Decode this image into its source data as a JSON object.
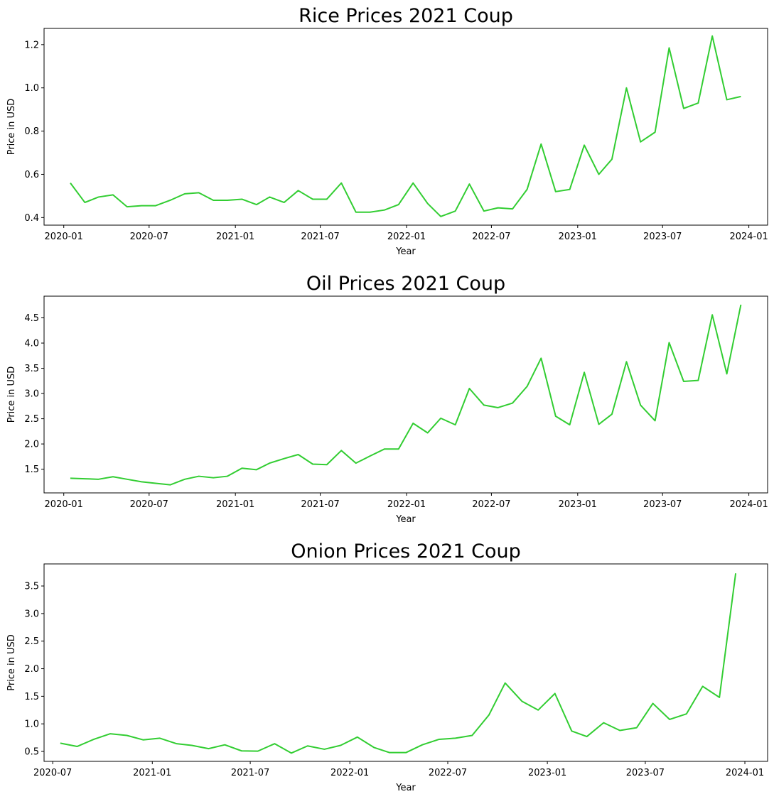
{
  "chart_data": [
    {
      "type": "line",
      "title": "Rice Prices 2021 Coup",
      "xlabel": "Year",
      "ylabel": "Price in USD",
      "color": "#32cd32",
      "xlim": [
        "2019-11-20",
        "2024-02-10"
      ],
      "ylim": [
        0.365,
        1.275
      ],
      "xticks": [
        "2020-01",
        "2020-07",
        "2021-01",
        "2021-07",
        "2022-01",
        "2022-07",
        "2023-01",
        "2023-07",
        "2024-01"
      ],
      "yticks": [
        "0.4",
        "0.6",
        "0.8",
        "1.0",
        "1.2"
      ],
      "series": [
        {
          "x": [
            "2020-01-15",
            "2020-02-15",
            "2020-03-15",
            "2020-04-15",
            "2020-05-15",
            "2020-06-15",
            "2020-07-15",
            "2020-08-15",
            "2020-09-15",
            "2020-10-15",
            "2020-11-15",
            "2020-12-15",
            "2021-01-15",
            "2021-02-15",
            "2021-03-15",
            "2021-04-15",
            "2021-05-15",
            "2021-06-15",
            "2021-07-15",
            "2021-08-15",
            "2021-09-15",
            "2021-10-15",
            "2021-11-15",
            "2021-12-15",
            "2022-01-15",
            "2022-02-15",
            "2022-03-15",
            "2022-04-15",
            "2022-05-15",
            "2022-06-15",
            "2022-07-15",
            "2022-08-15",
            "2022-09-15",
            "2022-10-15",
            "2022-11-15",
            "2022-12-15",
            "2023-01-15",
            "2023-02-15",
            "2023-03-15",
            "2023-04-15",
            "2023-05-15",
            "2023-06-15",
            "2023-07-15",
            "2023-08-15",
            "2023-09-15",
            "2023-10-15",
            "2023-11-15",
            "2023-12-15"
          ],
          "values": [
            0.56,
            0.47,
            0.495,
            0.505,
            0.45,
            0.455,
            0.455,
            0.48,
            0.51,
            0.515,
            0.48,
            0.48,
            0.485,
            0.46,
            0.495,
            0.47,
            0.525,
            0.485,
            0.485,
            0.56,
            0.425,
            0.425,
            0.435,
            0.46,
            0.56,
            0.465,
            0.405,
            0.43,
            0.555,
            0.43,
            0.445,
            0.44,
            0.53,
            0.74,
            0.52,
            0.53,
            0.735,
            0.6,
            0.67,
            1.0,
            0.75,
            0.795,
            1.185,
            0.905,
            0.93,
            1.24,
            0.945,
            0.96
          ]
        }
      ]
    },
    {
      "type": "line",
      "title": "Oil Prices 2021 Coup",
      "xlabel": "Year",
      "ylabel": "Price in USD",
      "color": "#32cd32",
      "xlim": [
        "2019-11-20",
        "2024-02-10"
      ],
      "ylim": [
        1.03,
        4.93
      ],
      "xticks": [
        "2020-01",
        "2020-07",
        "2021-01",
        "2021-07",
        "2022-01",
        "2022-07",
        "2023-01",
        "2023-07",
        "2024-01"
      ],
      "yticks": [
        "1.5",
        "2.0",
        "2.5",
        "3.0",
        "3.5",
        "4.0",
        "4.5"
      ],
      "series": [
        {
          "x": [
            "2020-01-15",
            "2020-02-15",
            "2020-03-15",
            "2020-04-15",
            "2020-05-15",
            "2020-06-15",
            "2020-07-15",
            "2020-08-15",
            "2020-09-15",
            "2020-10-15",
            "2020-11-15",
            "2020-12-15",
            "2021-01-15",
            "2021-02-15",
            "2021-03-15",
            "2021-04-15",
            "2021-05-15",
            "2021-06-15",
            "2021-07-15",
            "2021-08-15",
            "2021-09-15",
            "2021-10-15",
            "2021-11-15",
            "2021-12-15",
            "2022-01-15",
            "2022-02-15",
            "2022-03-15",
            "2022-04-15",
            "2022-05-15",
            "2022-06-15",
            "2022-07-15",
            "2022-08-15",
            "2022-09-15",
            "2022-10-15",
            "2022-11-15",
            "2022-12-15",
            "2023-01-15",
            "2023-02-15",
            "2023-03-15",
            "2023-04-15",
            "2023-05-15",
            "2023-06-15",
            "2023-07-15",
            "2023-08-15",
            "2023-09-15",
            "2023-10-15",
            "2023-11-15",
            "2023-12-15"
          ],
          "values": [
            1.32,
            1.31,
            1.3,
            1.35,
            1.3,
            1.25,
            1.22,
            1.19,
            1.3,
            1.36,
            1.33,
            1.36,
            1.52,
            1.49,
            1.62,
            1.71,
            1.79,
            1.6,
            1.59,
            1.87,
            1.62,
            1.76,
            1.9,
            1.9,
            2.41,
            2.22,
            2.51,
            2.38,
            3.1,
            2.77,
            2.72,
            2.81,
            3.14,
            3.7,
            2.55,
            2.38,
            3.42,
            2.39,
            2.59,
            3.63,
            2.77,
            2.46,
            4.01,
            3.24,
            3.26,
            4.56,
            3.39,
            4.76
          ]
        }
      ]
    },
    {
      "type": "line",
      "title": "Onion Prices 2021 Coup",
      "xlabel": "Year",
      "ylabel": "Price in USD",
      "color": "#32cd32",
      "xlim": [
        "2020-06-15",
        "2024-02-12"
      ],
      "ylim": [
        0.32,
        3.9
      ],
      "xticks": [
        "2020-07",
        "2021-01",
        "2021-07",
        "2022-01",
        "2022-07",
        "2023-01",
        "2023-07",
        "2024-01"
      ],
      "yticks": [
        "0.5",
        "1.0",
        "1.5",
        "2.0",
        "2.5",
        "3.0",
        "3.5"
      ],
      "series": [
        {
          "x": [
            "2020-07-15",
            "2020-08-15",
            "2020-09-15",
            "2020-10-15",
            "2020-11-15",
            "2020-12-15",
            "2021-01-15",
            "2021-02-15",
            "2021-03-15",
            "2021-04-15",
            "2021-05-15",
            "2021-06-15",
            "2021-07-15",
            "2021-08-15",
            "2021-09-15",
            "2021-10-15",
            "2021-11-15",
            "2021-12-15",
            "2022-01-15",
            "2022-02-15",
            "2022-03-15",
            "2022-04-15",
            "2022-05-15",
            "2022-06-15",
            "2022-07-15",
            "2022-08-15",
            "2022-09-15",
            "2022-10-15",
            "2022-11-15",
            "2022-12-15",
            "2023-01-15",
            "2023-02-15",
            "2023-03-15",
            "2023-04-15",
            "2023-05-15",
            "2023-06-15",
            "2023-07-15",
            "2023-08-15",
            "2023-09-15",
            "2023-10-15",
            "2023-11-15",
            "2023-12-15"
          ],
          "values": [
            0.65,
            0.59,
            0.72,
            0.82,
            0.79,
            0.71,
            0.74,
            0.64,
            0.61,
            0.55,
            0.62,
            0.51,
            0.505,
            0.64,
            0.47,
            0.6,
            0.54,
            0.61,
            0.76,
            0.57,
            0.48,
            0.48,
            0.62,
            0.72,
            0.74,
            0.79,
            1.16,
            1.74,
            1.41,
            1.25,
            1.55,
            0.87,
            0.77,
            1.02,
            0.88,
            0.93,
            1.37,
            1.08,
            1.18,
            1.68,
            1.48,
            3.73
          ]
        }
      ]
    }
  ]
}
